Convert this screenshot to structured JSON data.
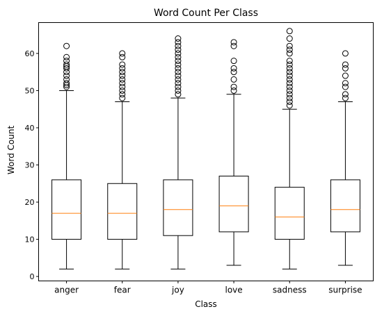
{
  "chart_data": {
    "type": "box",
    "title": "Word Count Per Class",
    "xlabel": "Class",
    "ylabel": "Word Count",
    "ylim": [
      -1.2,
      68.3
    ],
    "yticks": [
      0,
      10,
      20,
      30,
      40,
      50,
      60
    ],
    "grid": false,
    "colors": {
      "box": "#000000",
      "median": "#ff7f0e",
      "flier": "#000000"
    },
    "categories": [
      "anger",
      "fear",
      "joy",
      "love",
      "sadness",
      "surprise"
    ],
    "boxes": [
      {
        "label": "anger",
        "whisker_low": 2,
        "q1": 10,
        "median": 17,
        "q3": 26,
        "whisker_high": 50,
        "fliers": [
          51,
          51.5,
          52,
          53,
          54,
          55,
          56,
          56.5,
          57,
          58,
          59,
          62
        ]
      },
      {
        "label": "fear",
        "whisker_low": 2,
        "q1": 10,
        "median": 17,
        "q3": 25,
        "whisker_high": 47,
        "fliers": [
          48,
          49,
          50,
          51,
          52,
          53,
          54,
          55,
          56,
          57,
          59,
          60
        ]
      },
      {
        "label": "joy",
        "whisker_low": 2,
        "q1": 11,
        "median": 18,
        "q3": 26,
        "whisker_high": 48,
        "fliers": [
          49,
          50,
          51,
          52,
          53,
          54,
          55,
          56,
          57,
          58,
          59,
          60,
          61,
          62,
          63,
          64
        ]
      },
      {
        "label": "love",
        "whisker_low": 3,
        "q1": 12,
        "median": 19,
        "q3": 27,
        "whisker_high": 49,
        "fliers": [
          50,
          51,
          53,
          55,
          56,
          58,
          62,
          63
        ]
      },
      {
        "label": "sadness",
        "whisker_low": 2,
        "q1": 10,
        "median": 16,
        "q3": 24,
        "whisker_high": 45,
        "fliers": [
          46,
          47,
          48,
          49,
          50,
          51,
          52,
          53,
          54,
          55,
          56,
          57,
          58,
          60,
          61,
          62,
          64,
          66
        ]
      },
      {
        "label": "surprise",
        "whisker_low": 3,
        "q1": 12,
        "median": 18,
        "q3": 26,
        "whisker_high": 47,
        "fliers": [
          48,
          49,
          51,
          52,
          54,
          56,
          57,
          60
        ]
      }
    ]
  }
}
